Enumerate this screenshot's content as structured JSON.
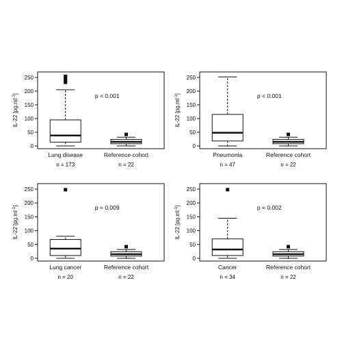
{
  "chart_data": [
    {
      "type": "boxplot",
      "ylabel": "IL-22 [pg.ml",
      "ylabel_sup": "-1",
      "ylabel_close": "]",
      "ylim": [
        0,
        260
      ],
      "yticks": [
        "0",
        "50",
        "100",
        "150",
        "200",
        "250"
      ],
      "annotation": "p < 0.001",
      "categories": [
        "Lung disease",
        "Reference cohort"
      ],
      "n_labels": [
        "n = 173",
        "n = 22"
      ],
      "boxes": [
        {
          "min": 0,
          "q1": 14,
          "median": 38,
          "q3": 95,
          "max": 205,
          "outliers": [
            232,
            238,
            244,
            250,
            254
          ]
        },
        {
          "min": 0,
          "q1": 8,
          "median": 15,
          "q3": 24,
          "max": 32,
          "outliers": [
            42
          ]
        }
      ]
    },
    {
      "type": "boxplot",
      "ylabel": "IL-22 [pg.ml",
      "ylabel_sup": "-1",
      "ylabel_close": "]",
      "ylim": [
        0,
        260
      ],
      "yticks": [
        "0",
        "50",
        "100",
        "150",
        "200",
        "250"
      ],
      "annotation": "p < 0.001",
      "categories": [
        "Pneumonia",
        "Reference cohort"
      ],
      "n_labels": [
        "n = 47",
        "n = 22"
      ],
      "boxes": [
        {
          "min": 0,
          "q1": 18,
          "median": 48,
          "q3": 115,
          "max": 252,
          "outliers": []
        },
        {
          "min": 0,
          "q1": 8,
          "median": 15,
          "q3": 24,
          "max": 32,
          "outliers": [
            42
          ]
        }
      ]
    },
    {
      "type": "boxplot",
      "ylabel": "IL-22 [pg.ml",
      "ylabel_sup": "-1",
      "ylabel_close": "]",
      "ylim": [
        0,
        260
      ],
      "yticks": [
        "0",
        "50",
        "100",
        "150",
        "200",
        "250"
      ],
      "annotation": "p = 0.009",
      "categories": [
        "Lung cancer",
        "Reference cohort"
      ],
      "n_labels": [
        "n = 20",
        "n = 22"
      ],
      "boxes": [
        {
          "min": 0,
          "q1": 10,
          "median": 35,
          "q3": 68,
          "max": 80,
          "outliers": [
            248
          ]
        },
        {
          "min": 0,
          "q1": 8,
          "median": 15,
          "q3": 24,
          "max": 32,
          "outliers": [
            42
          ]
        }
      ]
    },
    {
      "type": "boxplot",
      "ylabel": "IL-22 [pg.ml",
      "ylabel_sup": "-1",
      "ylabel_close": "]",
      "ylim": [
        0,
        260
      ],
      "yticks": [
        "0",
        "50",
        "100",
        "150",
        "200",
        "250"
      ],
      "annotation": "p = 0.002",
      "categories": [
        "Cancer",
        "Reference cohort"
      ],
      "n_labels": [
        "n = 34",
        "n = 22"
      ],
      "boxes": [
        {
          "min": 0,
          "q1": 10,
          "median": 32,
          "q3": 70,
          "max": 145,
          "outliers": [
            248
          ]
        },
        {
          "min": 0,
          "q1": 8,
          "median": 15,
          "q3": 24,
          "max": 32,
          "outliers": [
            42
          ]
        }
      ]
    }
  ]
}
